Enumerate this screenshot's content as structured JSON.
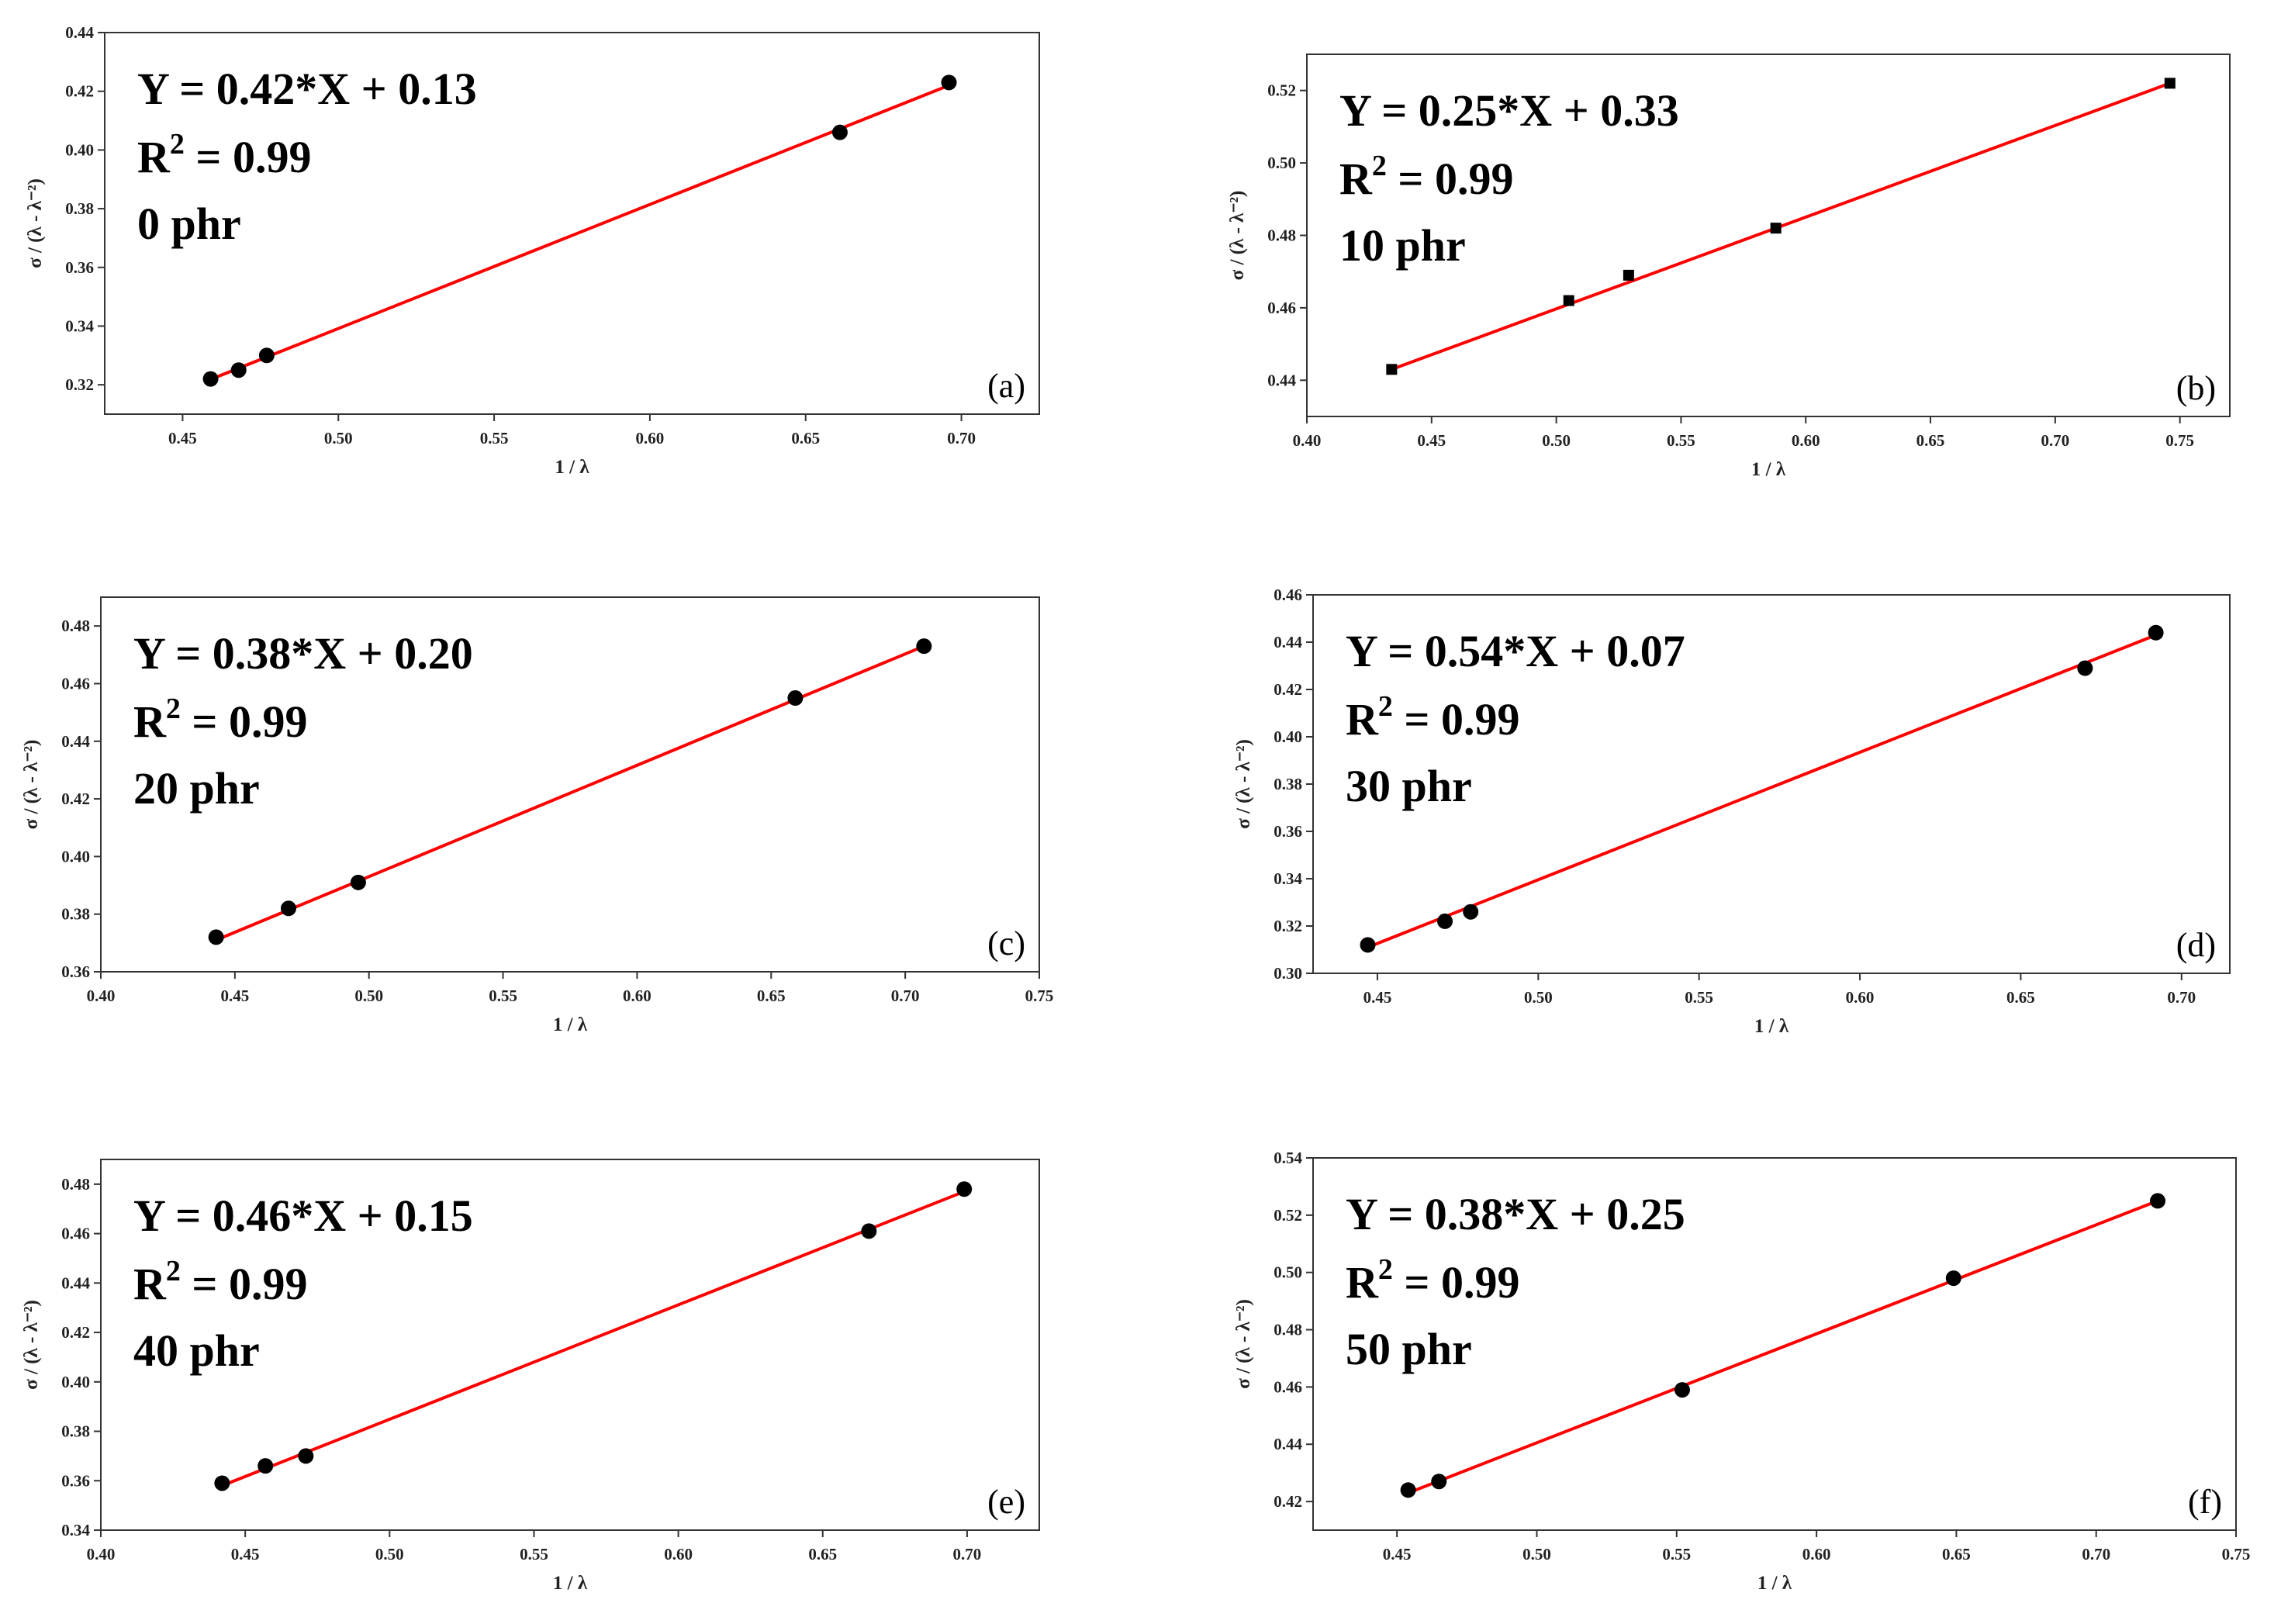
{
  "chart_data": [
    {
      "type": "scatter",
      "panel_label": "(a)",
      "equation": "Y = 0.42*X + 0.13",
      "r2_label": "R",
      "r2_exp": "2",
      "r2_value": " = 0.99",
      "sample": "0 phr",
      "xlabel": "1 / λ",
      "ylabel": "σ / (λ - λ⁻²)",
      "xlim": [
        0.425,
        0.725
      ],
      "ylim": [
        0.31,
        0.44
      ],
      "xticks": [
        "0.45",
        "0.50",
        "0.55",
        "0.60",
        "0.65",
        "0.70"
      ],
      "yticks": [
        "0.32",
        "0.34",
        "0.36",
        "0.38",
        "0.40",
        "0.42",
        "0.44"
      ],
      "marker": "circle",
      "series": [
        {
          "x": [
            0.459,
            0.468,
            0.477,
            0.661,
            0.696
          ],
          "y": [
            0.322,
            0.325,
            0.33,
            0.406,
            0.423
          ]
        }
      ],
      "fit": {
        "x": [
          0.457,
          0.696
        ],
        "y": [
          0.321,
          0.422
        ]
      }
    },
    {
      "type": "scatter",
      "panel_label": "(b)",
      "equation": "Y = 0.25*X + 0.33",
      "r2_label": "R",
      "r2_exp": "2",
      "r2_value": " = 0.99",
      "sample": "10 phr",
      "xlabel": "1 / λ",
      "ylabel": "σ / (λ - λ⁻²)",
      "xlim": [
        0.4,
        0.77
      ],
      "ylim": [
        0.43,
        0.53
      ],
      "xticks": [
        "0.40",
        "0.45",
        "0.50",
        "0.55",
        "0.60",
        "0.65",
        "0.70",
        "0.75"
      ],
      "yticks": [
        "0.44",
        "0.46",
        "0.48",
        "0.50",
        "0.52"
      ],
      "marker": "square",
      "series": [
        {
          "x": [
            0.434,
            0.505,
            0.529,
            0.588,
            0.746
          ],
          "y": [
            0.443,
            0.462,
            0.469,
            0.482,
            0.522
          ]
        }
      ],
      "fit": {
        "x": [
          0.434,
          0.746
        ],
        "y": [
          0.443,
          0.522
        ]
      }
    },
    {
      "type": "scatter",
      "panel_label": "(c)",
      "equation": "Y = 0.38*X + 0.20",
      "r2_label": "R",
      "r2_exp": "2",
      "r2_value": " = 0.99",
      "sample": "20 phr",
      "xlabel": "1 / λ",
      "ylabel": "σ / (λ - λ⁻²)",
      "xlim": [
        0.4,
        0.75
      ],
      "ylim": [
        0.36,
        0.49
      ],
      "xticks": [
        "0.40",
        "0.45",
        "0.50",
        "0.55",
        "0.60",
        "0.65",
        "0.70",
        "0.75"
      ],
      "yticks": [
        "0.36",
        "0.38",
        "0.40",
        "0.42",
        "0.44",
        "0.46",
        "0.48"
      ],
      "marker": "circle",
      "series": [
        {
          "x": [
            0.443,
            0.47,
            0.496,
            0.659,
            0.707
          ],
          "y": [
            0.372,
            0.382,
            0.391,
            0.455,
            0.473
          ]
        }
      ],
      "fit": {
        "x": [
          0.443,
          0.707
        ],
        "y": [
          0.371,
          0.473
        ]
      }
    },
    {
      "type": "scatter",
      "panel_label": "(d)",
      "equation": "Y = 0.54*X + 0.07",
      "r2_label": "R",
      "r2_exp": "2",
      "r2_value": " = 0.99",
      "sample": "30 phr",
      "xlabel": "1 / λ",
      "ylabel": "σ / (λ - λ⁻²)",
      "xlim": [
        0.43,
        0.715
      ],
      "ylim": [
        0.3,
        0.46
      ],
      "xticks": [
        "0.45",
        "0.50",
        "0.55",
        "0.60",
        "0.65",
        "0.70"
      ],
      "yticks": [
        "0.30",
        "0.32",
        "0.34",
        "0.36",
        "0.38",
        "0.40",
        "0.42",
        "0.44",
        "0.46"
      ],
      "marker": "circle",
      "series": [
        {
          "x": [
            0.447,
            0.471,
            0.479,
            0.67,
            0.692
          ],
          "y": [
            0.312,
            0.322,
            0.326,
            0.429,
            0.444
          ]
        }
      ],
      "fit": {
        "x": [
          0.447,
          0.692
        ],
        "y": [
          0.311,
          0.443
        ]
      }
    },
    {
      "type": "scatter",
      "panel_label": "(e)",
      "equation": "Y = 0.46*X + 0.15",
      "r2_label": "R",
      "r2_exp": "2",
      "r2_value": " = 0.99",
      "sample": "40 phr",
      "xlabel": "1 / λ",
      "ylabel": "σ / (λ - λ⁻²)",
      "xlim": [
        0.4,
        0.725
      ],
      "ylim": [
        0.34,
        0.49
      ],
      "xticks": [
        "0.40",
        "0.45",
        "0.50",
        "0.55",
        "0.60",
        "0.65",
        "0.70"
      ],
      "yticks": [
        "0.34",
        "0.36",
        "0.38",
        "0.40",
        "0.42",
        "0.44",
        "0.46",
        "0.48"
      ],
      "marker": "circle",
      "series": [
        {
          "x": [
            0.442,
            0.457,
            0.471,
            0.666,
            0.699
          ],
          "y": [
            0.359,
            0.366,
            0.37,
            0.461,
            0.478
          ]
        }
      ],
      "fit": {
        "x": [
          0.442,
          0.699
        ],
        "y": [
          0.358,
          0.477
        ]
      }
    },
    {
      "type": "scatter",
      "panel_label": "(f)",
      "equation": "Y = 0.38*X + 0.25",
      "r2_label": "R",
      "r2_exp": "2",
      "r2_value": " = 0.99",
      "sample": "50 phr",
      "xlabel": "1 / λ",
      "ylabel": "σ / (λ - λ⁻²)",
      "xlim": [
        0.42,
        0.75
      ],
      "ylim": [
        0.41,
        0.54
      ],
      "xticks": [
        "0.45",
        "0.50",
        "0.55",
        "0.60",
        "0.65",
        "0.70",
        "0.75"
      ],
      "yticks": [
        "0.42",
        "0.44",
        "0.46",
        "0.48",
        "0.50",
        "0.52",
        "0.54"
      ],
      "marker": "circle",
      "series": [
        {
          "x": [
            0.454,
            0.465,
            0.552,
            0.649,
            0.722
          ],
          "y": [
            0.424,
            0.427,
            0.459,
            0.498,
            0.525
          ]
        }
      ],
      "fit": {
        "x": [
          0.454,
          0.722
        ],
        "y": [
          0.423,
          0.525
        ]
      }
    }
  ],
  "colors": {
    "fit_line": "#ff0000",
    "marker": "#000000",
    "axis": "#333333"
  }
}
